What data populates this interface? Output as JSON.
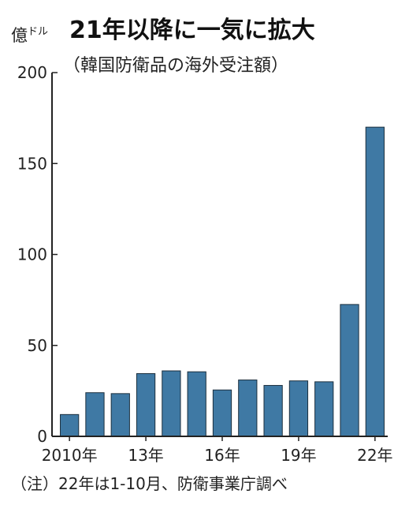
{
  "chart_data": {
    "type": "bar",
    "title": "21年以降に一気に拡大",
    "subtitle": "（韓国防衛品の海外受注額）",
    "unit_main": "億",
    "unit_small": "ドル",
    "note": "（注）22年は1-10月、防衛事業庁調べ",
    "categories": [
      "2010",
      "2011",
      "2012",
      "2013",
      "2014",
      "2015",
      "2016",
      "2017",
      "2018",
      "2019",
      "2020",
      "2021",
      "2022"
    ],
    "values": [
      12,
      24,
      23.5,
      34.5,
      36,
      35.5,
      25.5,
      31,
      28,
      30.5,
      30,
      72.5,
      170
    ],
    "x_tick_labels": [
      {
        "index": 0,
        "label": "2010年"
      },
      {
        "index": 3,
        "label": "13年"
      },
      {
        "index": 6,
        "label": "16年"
      },
      {
        "index": 9,
        "label": "19年"
      },
      {
        "index": 12,
        "label": "22年"
      }
    ],
    "y_ticks": [
      0,
      50,
      100,
      150,
      200
    ],
    "ylim": [
      0,
      210
    ],
    "grid": false,
    "bar_color": "#3f79a4",
    "bar_stroke": "#1c2f3e"
  }
}
